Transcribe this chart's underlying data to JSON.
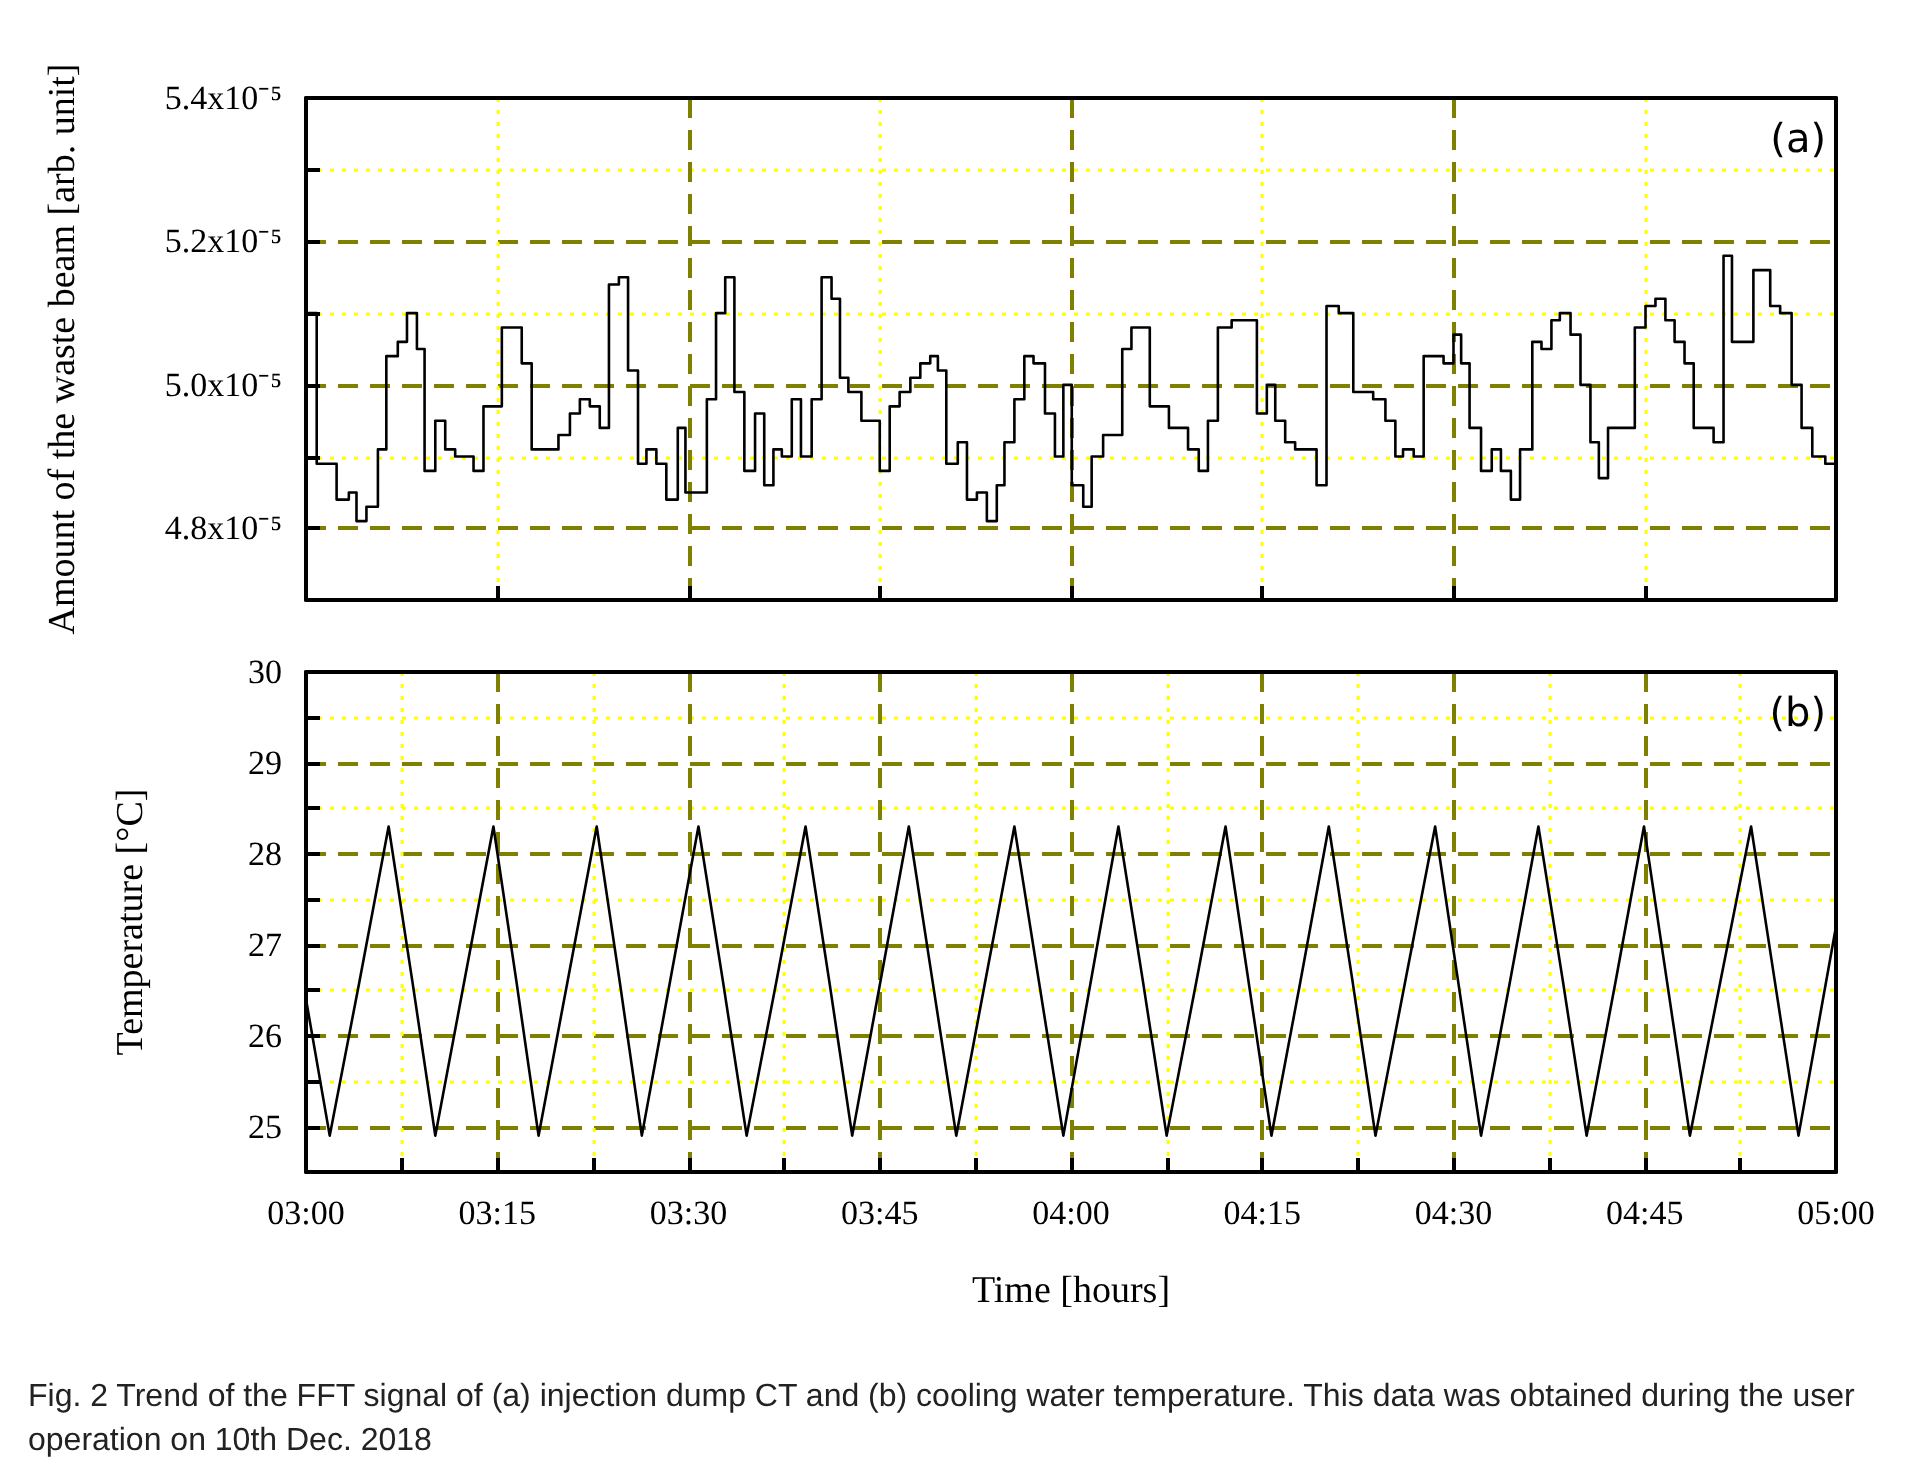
{
  "chart_data": [
    {
      "type": "step",
      "ylabel": "Amount of the waste beam [arb. unit]",
      "annotations": [
        "(a)"
      ],
      "grid": true,
      "tick_labels": "y",
      "xlim": [
        3,
        5
      ],
      "ylim": [
        4.7e-05,
        5.4e-05
      ],
      "xticks": [
        3,
        {
          "value": 3.25,
          "label": null
        },
        3.5,
        {
          "value": 3.75,
          "label": null
        },
        4,
        {
          "value": 4.25,
          "label": null
        },
        4.5,
        {
          "value": 4.75,
          "label": null
        },
        5
      ],
      "yticks": [
        {
          "value": 4.8e-05,
          "label": "4.8x10⁻⁵"
        },
        {
          "value": 4.9e-05,
          "label": null
        },
        {
          "value": 5e-05,
          "label": "5.0x10⁻⁵"
        },
        {
          "value": 5.1e-05,
          "label": null
        },
        {
          "value": 5.2e-05,
          "label": "5.2x10⁻⁵"
        },
        {
          "value": 5.3e-05,
          "label": null
        },
        {
          "value": 5.4e-05,
          "label": "5.4x10⁻⁵"
        }
      ],
      "x": [
        3.0,
        3.014,
        3.04,
        3.056,
        3.066,
        3.079,
        3.094,
        3.105,
        3.12,
        3.132,
        3.145,
        3.155,
        3.169,
        3.182,
        3.195,
        3.219,
        3.232,
        3.256,
        3.282,
        3.295,
        3.33,
        3.345,
        3.358,
        3.371,
        3.384,
        3.396,
        3.409,
        3.421,
        3.434,
        3.445,
        3.458,
        3.471,
        3.486,
        3.496,
        3.524,
        3.536,
        3.548,
        3.56,
        3.573,
        3.587,
        3.599,
        3.611,
        3.622,
        3.635,
        3.647,
        3.661,
        3.674,
        3.687,
        3.698,
        3.709,
        3.726,
        3.75,
        3.763,
        3.776,
        3.79,
        3.803,
        3.816,
        3.826,
        3.837,
        3.852,
        3.864,
        3.877,
        3.89,
        3.903,
        3.913,
        3.926,
        3.939,
        3.951,
        3.966,
        3.979,
        3.99,
        4.001,
        4.016,
        4.027,
        4.042,
        4.067,
        4.079,
        4.103,
        4.128,
        4.153,
        4.167,
        4.179,
        4.192,
        4.21,
        4.243,
        4.256,
        4.267,
        4.28,
        4.293,
        4.321,
        4.334,
        4.35,
        4.369,
        4.395,
        4.411,
        4.424,
        4.434,
        4.448,
        4.461,
        4.487,
        4.5,
        4.51,
        4.521,
        4.536,
        4.55,
        4.562,
        4.575,
        4.587,
        4.603,
        4.615,
        4.628,
        4.639,
        4.653,
        4.666,
        4.679,
        4.69,
        4.702,
        4.737,
        4.751,
        4.764,
        4.777,
        4.789,
        4.802,
        4.814,
        4.84,
        4.853,
        4.864,
        4.892,
        4.914,
        4.927,
        4.942,
        4.955,
        4.969,
        4.986,
        5.0
      ],
      "series": [
        {
          "color": "#000000",
          "values": [
            5.1e-05,
            4.89e-05,
            4.84e-05,
            4.85e-05,
            4.81e-05,
            4.83e-05,
            4.91e-05,
            5.04e-05,
            5.06e-05,
            5.1e-05,
            5.05e-05,
            4.88e-05,
            4.95e-05,
            4.91e-05,
            4.9e-05,
            4.88e-05,
            4.97e-05,
            5.08e-05,
            5.03e-05,
            4.91e-05,
            4.93e-05,
            4.96e-05,
            4.98e-05,
            4.97e-05,
            4.94e-05,
            5.14e-05,
            5.15e-05,
            5.02e-05,
            4.89e-05,
            4.91e-05,
            4.89e-05,
            4.84e-05,
            4.94e-05,
            4.85e-05,
            4.98e-05,
            5.1e-05,
            5.15e-05,
            4.99e-05,
            4.88e-05,
            4.96e-05,
            4.86e-05,
            4.91e-05,
            4.9e-05,
            4.98e-05,
            4.9e-05,
            4.98e-05,
            5.15e-05,
            5.12e-05,
            5.01e-05,
            4.99e-05,
            4.95e-05,
            4.88e-05,
            4.97e-05,
            4.99e-05,
            5.01e-05,
            5.03e-05,
            5.04e-05,
            5.02e-05,
            4.89e-05,
            4.92e-05,
            4.84e-05,
            4.85e-05,
            4.81e-05,
            4.86e-05,
            4.92e-05,
            4.98e-05,
            5.04e-05,
            5.03e-05,
            4.96e-05,
            4.9e-05,
            5e-05,
            4.86e-05,
            4.83e-05,
            4.9e-05,
            4.93e-05,
            5.05e-05,
            5.08e-05,
            4.97e-05,
            4.94e-05,
            4.91e-05,
            4.88e-05,
            4.95e-05,
            5.08e-05,
            5.09e-05,
            4.96e-05,
            5e-05,
            4.95e-05,
            4.92e-05,
            4.91e-05,
            4.86e-05,
            5.11e-05,
            5.1e-05,
            4.99e-05,
            4.98e-05,
            4.95e-05,
            4.9e-05,
            4.91e-05,
            4.9e-05,
            5.04e-05,
            5.03e-05,
            5.07e-05,
            5.03e-05,
            4.94e-05,
            4.88e-05,
            4.91e-05,
            4.88e-05,
            4.84e-05,
            4.91e-05,
            5.06e-05,
            5.05e-05,
            5.09e-05,
            5.1e-05,
            5.07e-05,
            5e-05,
            4.92e-05,
            4.87e-05,
            4.94e-05,
            5.08e-05,
            5.11e-05,
            5.12e-05,
            5.09e-05,
            5.06e-05,
            5.03e-05,
            4.94e-05,
            4.92e-05,
            5.18e-05,
            5.06e-05,
            5.16e-05,
            5.11e-05,
            5.1e-05,
            5e-05,
            4.94e-05,
            4.9e-05,
            4.89e-05,
            4.89e-05
          ]
        }
      ]
    },
    {
      "type": "line",
      "xlabel": "Time [hours]",
      "ylabel": "Temperature [°C]",
      "annotations": [
        "(b)",
        "Fig. 2 Trend of the FFT signal of (a) injection dump CT and (b) cooling water temperature. This data was obtained during the user operation on 10th Dec. 2018"
      ],
      "grid": true,
      "xlim": [
        3,
        5
      ],
      "ylim": [
        24.5,
        30
      ],
      "xticks": [
        {
          "value": 3,
          "label": "03:00"
        },
        {
          "value": 3.125,
          "label": null
        },
        {
          "value": 3.25,
          "label": "03:15"
        },
        {
          "value": 3.375,
          "label": null
        },
        {
          "value": 3.5,
          "label": "03:30"
        },
        {
          "value": 3.625,
          "label": null
        },
        {
          "value": 3.75,
          "label": "03:45"
        },
        {
          "value": 3.875,
          "label": null
        },
        {
          "value": 4,
          "label": "04:00"
        },
        {
          "value": 4.125,
          "label": null
        },
        {
          "value": 4.25,
          "label": "04:15"
        },
        {
          "value": 4.375,
          "label": null
        },
        {
          "value": 4.5,
          "label": "04:30"
        },
        {
          "value": 4.625,
          "label": null
        },
        {
          "value": 4.75,
          "label": "04:45"
        },
        {
          "value": 4.875,
          "label": null
        },
        {
          "value": 5,
          "label": "05:00"
        }
      ],
      "yticks": [
        25,
        {
          "value": 25.5,
          "label": null
        },
        26,
        {
          "value": 26.5,
          "label": null
        },
        27,
        {
          "value": 27.5,
          "label": null
        },
        28,
        {
          "value": 28.5,
          "label": null
        },
        29,
        {
          "value": 29.5,
          "label": null
        },
        30
      ],
      "x": [
        3.0,
        3.031,
        3.07,
        3.108,
        3.139,
        3.169,
        3.207,
        3.245,
        3.275,
        3.304,
        3.342,
        3.38,
        3.41,
        3.439,
        3.476,
        3.513,
        3.545,
        3.576,
        3.615,
        3.653,
        3.684,
        3.714,
        3.751,
        3.788,
        3.819,
        3.85,
        3.888,
        3.926,
        3.958,
        3.99,
        4.026,
        4.062,
        4.094,
        4.125,
        4.164,
        4.202,
        4.232,
        4.262,
        4.3,
        4.337,
        4.368,
        4.398,
        4.437,
        4.476,
        4.506,
        4.536,
        4.574,
        4.611,
        4.643,
        4.674,
        4.712,
        4.749,
        4.779,
        4.809,
        4.849,
        4.889,
        4.92,
        4.951,
        5.0
      ],
      "series": [
        {
          "color": "#000000",
          "values": [
            26.4,
            24.9,
            26.6,
            28.3,
            26.6,
            24.9,
            26.6,
            28.3,
            26.6,
            24.9,
            26.6,
            28.3,
            26.6,
            24.9,
            26.6,
            28.3,
            26.6,
            24.9,
            26.6,
            28.3,
            26.6,
            24.9,
            26.6,
            28.3,
            26.6,
            24.9,
            26.6,
            28.3,
            26.6,
            24.9,
            26.6,
            28.3,
            26.6,
            24.9,
            26.6,
            28.3,
            26.6,
            24.9,
            26.6,
            28.3,
            26.6,
            24.9,
            26.6,
            28.3,
            26.6,
            24.9,
            26.6,
            28.3,
            26.6,
            24.9,
            26.6,
            28.3,
            26.6,
            24.9,
            26.6,
            28.3,
            26.6,
            24.9,
            27.2
          ]
        }
      ]
    }
  ]
}
